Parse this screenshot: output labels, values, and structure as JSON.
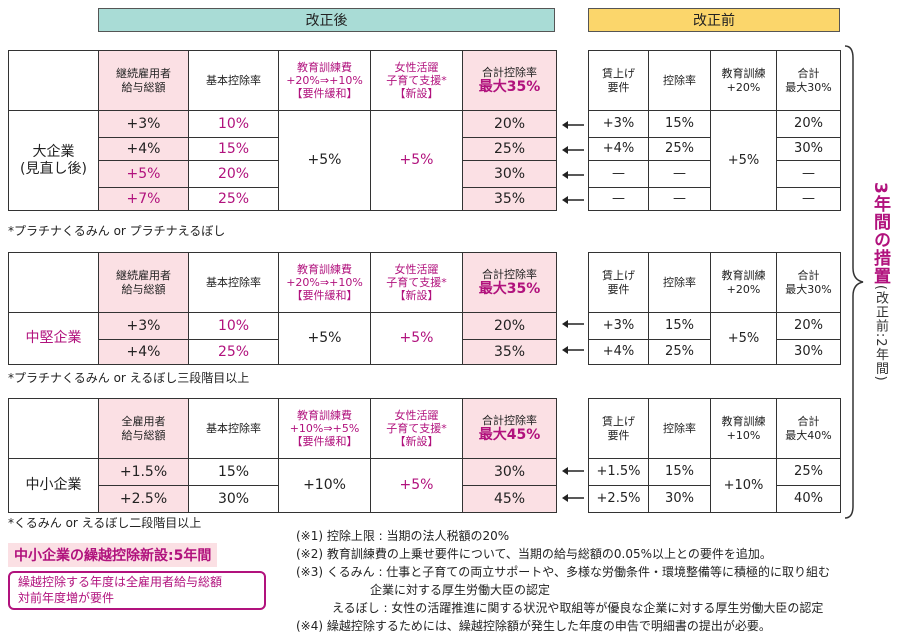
{
  "headers": {
    "after": "改正後",
    "before": "改正前"
  },
  "large": {
    "corner": "",
    "col_salary": "継続雇用者\n給与総額",
    "col_base": "基本控除率",
    "col_edu": "教育訓練費\n+20%⇒+10%\n【要件緩和】",
    "col_women": "女性活躍\n子育て支援*\n【新設】",
    "col_total_label": "合計控除率",
    "col_total_max": "最大35%",
    "row_label": "大企業\n(見直し後)",
    "rows": [
      {
        "salary": "+3%",
        "base": "10%",
        "total": "20%"
      },
      {
        "salary": "+4%",
        "base": "15%",
        "total": "25%"
      },
      {
        "salary": "+5%",
        "base": "20%",
        "total": "30%"
      },
      {
        "salary": "+7%",
        "base": "25%",
        "total": "35%"
      }
    ],
    "edu_value": "+5%",
    "women_value": "+5%",
    "footnote": "*プラチナくるみん or プラチナえるぼし",
    "before": {
      "col_wage": "賃上げ\n要件",
      "col_rate": "控除率",
      "col_edu": "教育訓練\n+20%",
      "col_total": "合計\n最大30%",
      "rows": [
        {
          "wage": "+3%",
          "rate": "15%",
          "total": "20%"
        },
        {
          "wage": "+4%",
          "rate": "25%",
          "total": "30%"
        },
        {
          "wage": "—",
          "rate": "—",
          "total": "—"
        },
        {
          "wage": "—",
          "rate": "—",
          "total": "—"
        }
      ],
      "edu_value": "+5%"
    }
  },
  "mid": {
    "col_salary": "継続雇用者\n給与総額",
    "col_base": "基本控除率",
    "col_edu": "教育訓練費\n+20%⇒+10%\n【要件緩和】",
    "col_women": "女性活躍\n子育て支援*\n【新設】",
    "col_total_label": "合計控除率",
    "col_total_max": "最大35%",
    "row_label": "中堅企業",
    "rows": [
      {
        "salary": "+3%",
        "base": "10%",
        "total": "20%"
      },
      {
        "salary": "+4%",
        "base": "25%",
        "total": "35%"
      }
    ],
    "edu_value": "+5%",
    "women_value": "+5%",
    "footnote": "*プラチナくるみん or えるぼし三段階目以上",
    "before": {
      "col_wage": "賃上げ\n要件",
      "col_rate": "控除率",
      "col_edu": "教育訓練\n+20%",
      "col_total": "合計\n最大30%",
      "rows": [
        {
          "wage": "+3%",
          "rate": "15%",
          "total": "20%"
        },
        {
          "wage": "+4%",
          "rate": "25%",
          "total": "30%"
        }
      ],
      "edu_value": "+5%"
    }
  },
  "small": {
    "col_salary": "全雇用者\n給与総額",
    "col_base": "基本控除率",
    "col_edu": "教育訓練費\n+10%⇒+5%\n【要件緩和】",
    "col_women": "女性活躍\n子育て支援*\n【新設】",
    "col_total_label": "合計控除率",
    "col_total_max": "最大45%",
    "row_label": "中小企業",
    "rows": [
      {
        "salary": "+1.5%",
        "base": "15%",
        "total": "30%"
      },
      {
        "salary": "+2.5%",
        "base": "30%",
        "total": "45%"
      }
    ],
    "edu_value": "+10%",
    "women_value": "+5%",
    "footnote": "*くるみん or えるぼし二段階目以上",
    "before": {
      "col_wage": "賃上げ\n要件",
      "col_rate": "控除率",
      "col_edu": "教育訓練\n+10%",
      "col_total": "合計\n最大40%",
      "rows": [
        {
          "wage": "+1.5%",
          "rate": "15%",
          "total": "25%"
        },
        {
          "wage": "+2.5%",
          "rate": "30%",
          "total": "40%"
        }
      ],
      "edu_value": "+10%"
    }
  },
  "side": {
    "main": "3年間の措置",
    "sub": "(改正前:2年間)"
  },
  "carryover": {
    "title": "中小企業の繰越控除新設:5年間",
    "box": "繰越控除する年度は全雇用者給与総額\n対前年度増が要件"
  },
  "notes": {
    "n1": "(※1) 控除上限 : 当期の法人税額の20%",
    "n2": "(※2) 教育訓練費の上乗せ要件について、当期の給与総額の0.05%以上との要件を追加。",
    "n3a": "(※3) くるみん : 仕事と子育ての両立サポートや、多様な労働条件・環境整備等に積極的に取り組む",
    "n3b": "企業に対する厚生労働大臣の認定",
    "n3c": "えるぼし : 女性の活躍推進に関する状況や取組等が優良な企業に対する厚生労働大臣の認定",
    "n4": "(※4) 繰越控除するためには、繰越控除額が発生した年度の申告で明細書の提出が必要。"
  },
  "colors": {
    "teal": "#a9dcd6",
    "yellow": "#fbd66b",
    "pink": "#fbe0e4",
    "magenta": "#b1127d"
  }
}
